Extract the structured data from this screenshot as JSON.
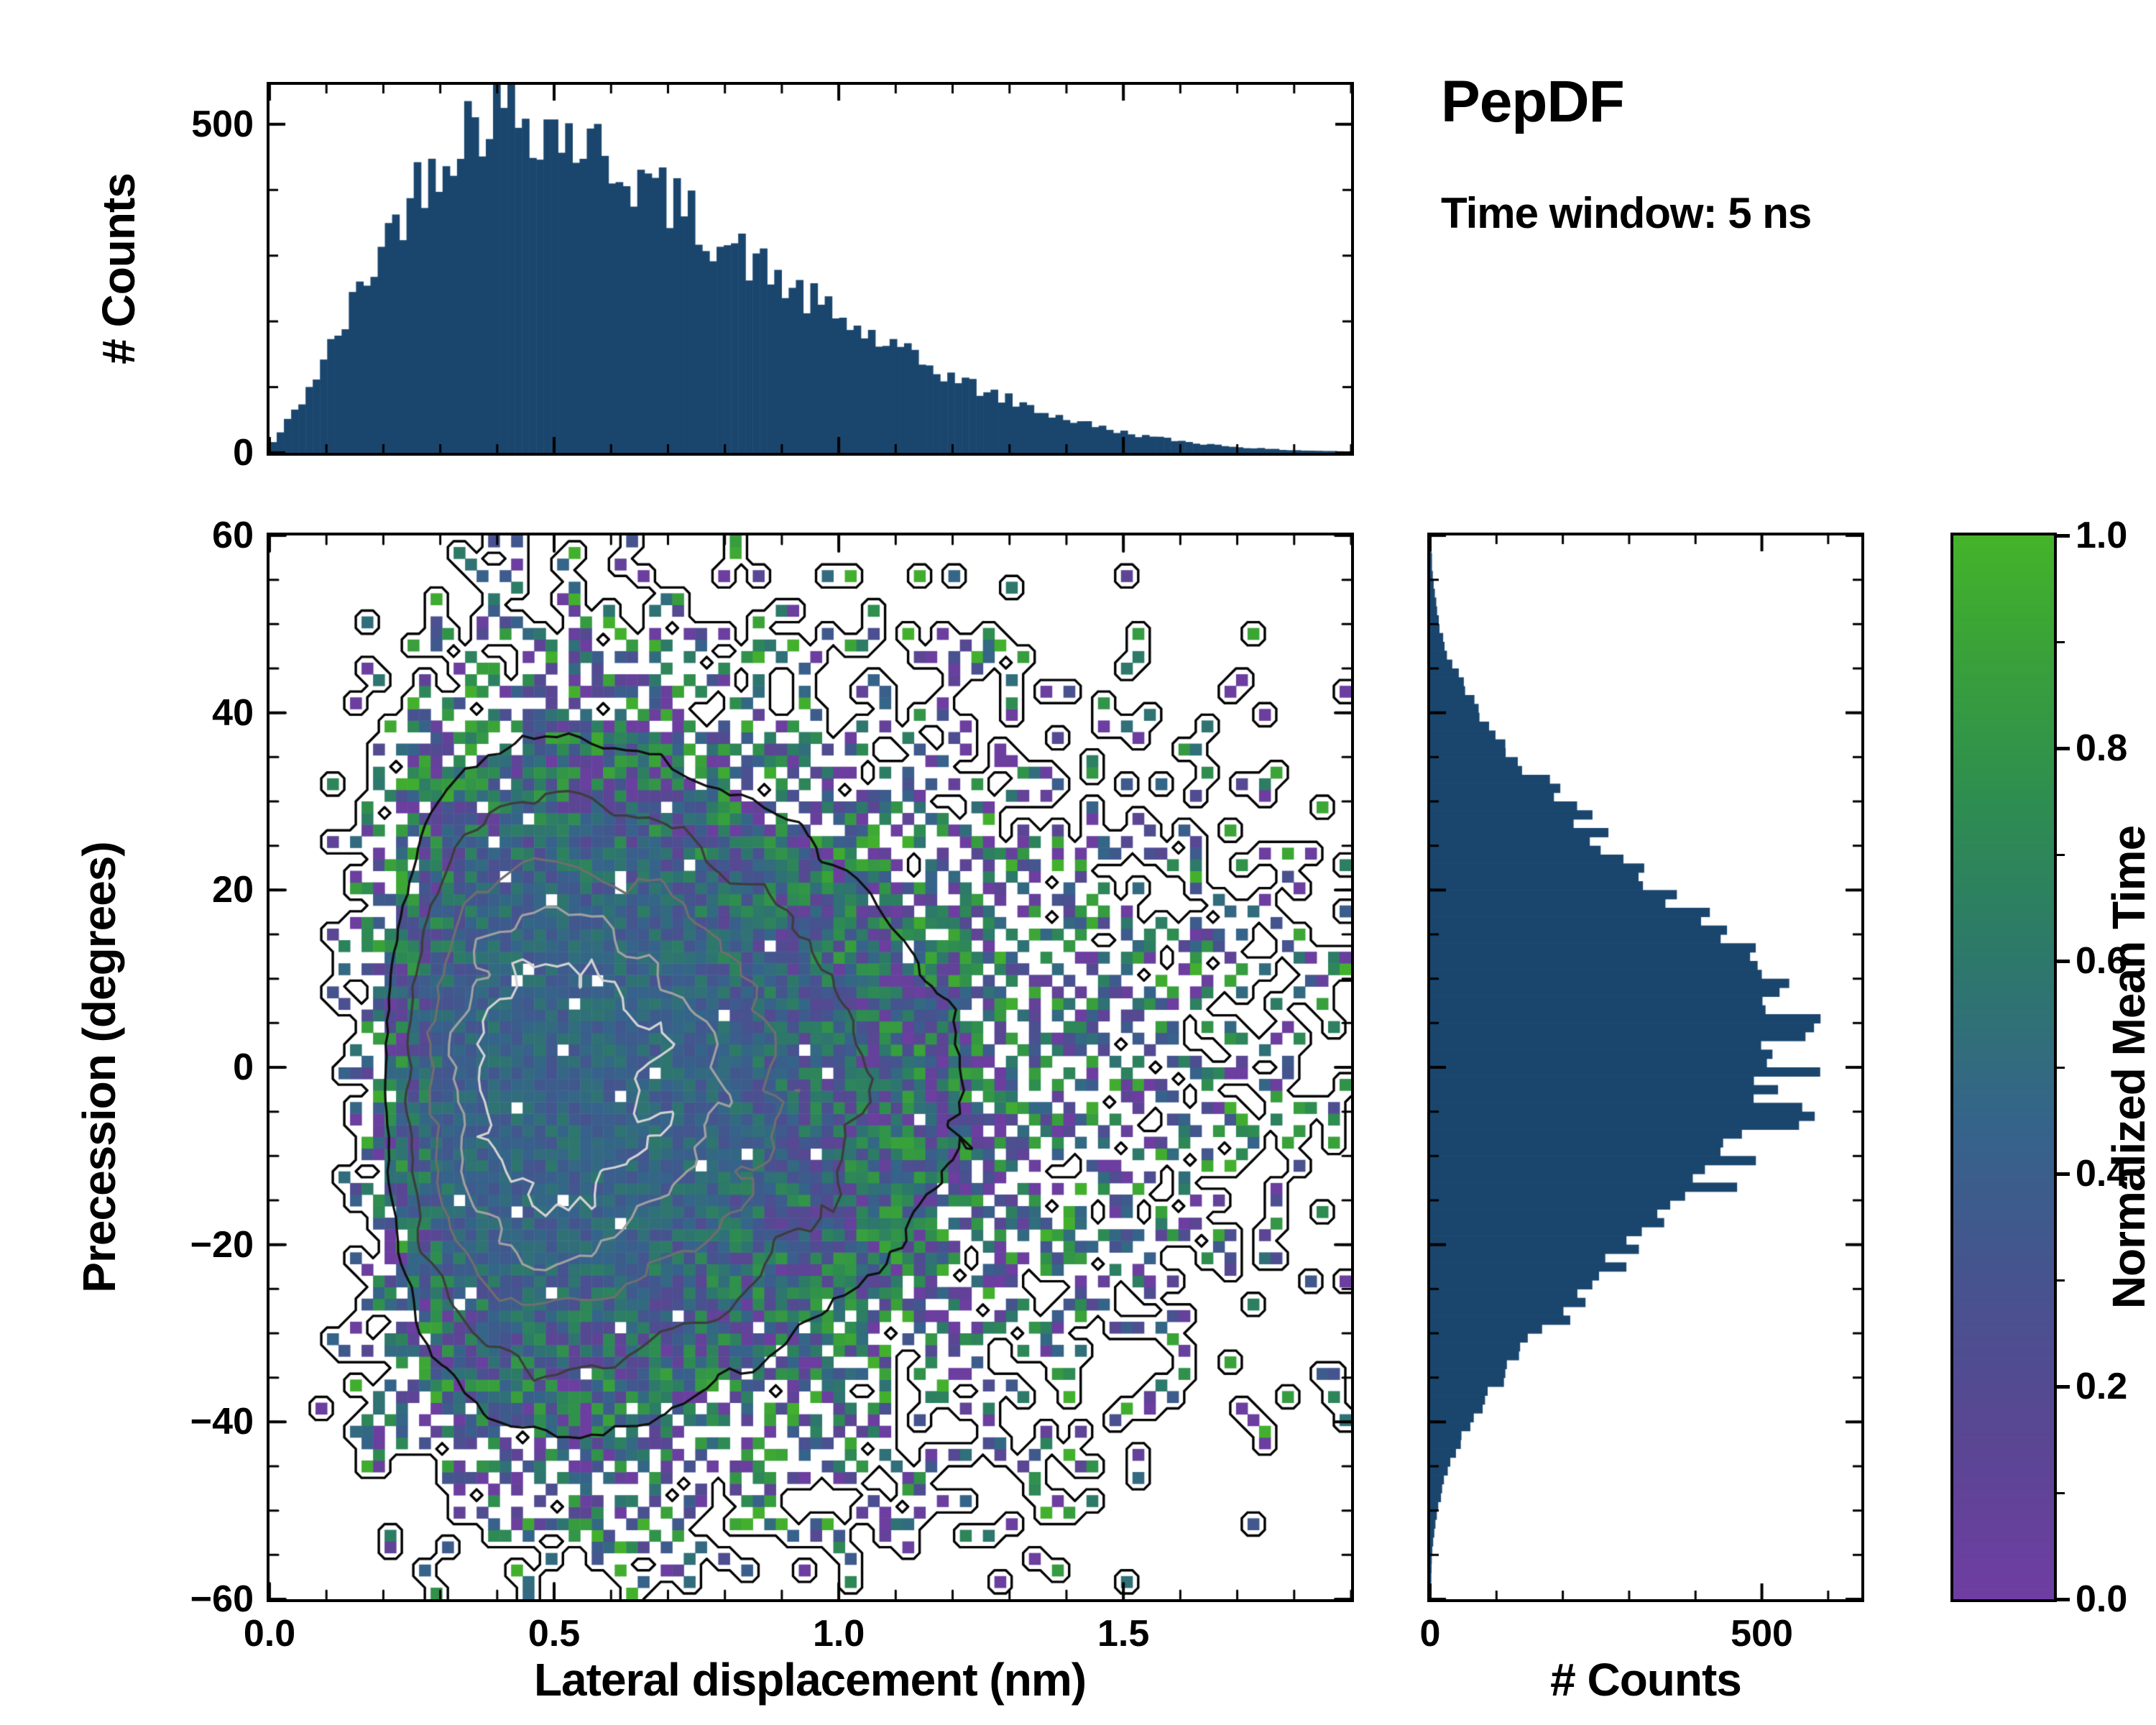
{
  "title": "PepDF",
  "subtitle": "Time window: 5 ns",
  "colors": {
    "bar": "#1a466e",
    "spine": "#000000",
    "background": "#ffffff",
    "outline": "#000000",
    "contour_shades": [
      "#101010",
      "#3d3d3d",
      "#6e6e6e",
      "#a0a0a0",
      "#d2d2d2"
    ]
  },
  "colorbar": {
    "label": "Normalized Mean Time",
    "ticks": [
      {
        "v": 0.0,
        "label": "0.0"
      },
      {
        "v": 0.2,
        "label": "0.2"
      },
      {
        "v": 0.4,
        "label": "0.4"
      },
      {
        "v": 0.6,
        "label": "0.6"
      },
      {
        "v": 0.8,
        "label": "0.8"
      },
      {
        "v": 1.0,
        "label": "1.0"
      }
    ],
    "stops": [
      [
        0.0,
        "#6f3da2"
      ],
      [
        0.15,
        "#5a4693"
      ],
      [
        0.3,
        "#46538f"
      ],
      [
        0.45,
        "#35648a"
      ],
      [
        0.6,
        "#2d786b"
      ],
      [
        0.75,
        "#2e8d50"
      ],
      [
        0.9,
        "#3aa338"
      ],
      [
        1.0,
        "#45b32a"
      ]
    ]
  },
  "chart_data": [
    {
      "type": "bar",
      "panel": "top",
      "name": "lateral-displacement-marginal-histogram",
      "xlabel": "",
      "ylabel": "# Counts",
      "x_range": [
        0,
        1.9
      ],
      "y_range": [
        0,
        560
      ],
      "bins": 150,
      "y_ticks": [
        {
          "v": 0,
          "label": "0"
        },
        {
          "v": 500,
          "label": "500"
        }
      ],
      "profile_x": [
        0,
        0.05,
        0.1,
        0.15,
        0.2,
        0.25,
        0.3,
        0.35,
        0.4,
        0.45,
        0.5,
        0.55,
        0.6,
        0.65,
        0.7,
        0.75,
        0.8,
        0.85,
        0.9,
        0.95,
        1,
        1.05,
        1.1,
        1.15,
        1.2,
        1.25,
        1.3,
        1.35,
        1.4,
        1.45,
        1.5,
        1.55,
        1.6,
        1.65,
        1.7,
        1.75,
        1.8,
        1.85,
        1.9
      ],
      "profile_counts": [
        8,
        70,
        145,
        230,
        320,
        395,
        455,
        500,
        530,
        515,
        495,
        472,
        445,
        415,
        385,
        352,
        320,
        290,
        260,
        232,
        205,
        180,
        157,
        135,
        115,
        96,
        80,
        65,
        52,
        41,
        31,
        24,
        18,
        13,
        9,
        6,
        4,
        3,
        2
      ],
      "noise": 0.1,
      "seed": 42
    },
    {
      "type": "heatmap",
      "panel": "main",
      "name": "joint-histogram",
      "xlabel": "Lateral displacement (nm)",
      "ylabel": "Precession (degrees)",
      "value_label": "Normalized Mean Time",
      "x_range": [
        0,
        1.9
      ],
      "y_range": [
        -60,
        60
      ],
      "x_ticks": [
        {
          "v": 0.0,
          "label": "0.0"
        },
        {
          "v": 0.5,
          "label": "0.5"
        },
        {
          "v": 1.0,
          "label": "1.0"
        },
        {
          "v": 1.5,
          "label": "1.5"
        }
      ],
      "y_ticks": [
        {
          "v": -60,
          "label": "−60"
        },
        {
          "v": -40,
          "label": "−40"
        },
        {
          "v": -20,
          "label": "−20"
        },
        {
          "v": 0,
          "label": "0"
        },
        {
          "v": 20,
          "label": "20"
        },
        {
          "v": 40,
          "label": "40"
        },
        {
          "v": 60,
          "label": "60"
        }
      ],
      "grid": {
        "nx": 94,
        "ny": 92
      },
      "density": {
        "x_mode": 0.5,
        "x_sigma": 0.48,
        "y_mean": -2,
        "y_sigma": 21
      },
      "mean_time_center": 0.45,
      "contour_levels": [
        0.18,
        0.32,
        0.5,
        0.68,
        0.84
      ],
      "seed": 7
    },
    {
      "type": "bar",
      "panel": "right",
      "orientation": "horizontal",
      "name": "precession-marginal-histogram",
      "xlabel": "# Counts",
      "ylabel": "",
      "x_range": [
        0,
        650
      ],
      "y_range": [
        -60,
        60
      ],
      "bins": 120,
      "x_ticks": [
        {
          "v": 0,
          "label": "0"
        },
        {
          "v": 500,
          "label": "500"
        }
      ],
      "profile_y": [
        -60,
        -55,
        -50,
        -45,
        -40,
        -35,
        -30,
        -25,
        -20,
        -15,
        -10,
        -5,
        0,
        5,
        10,
        15,
        20,
        25,
        30,
        35,
        40,
        45,
        50,
        55,
        60
      ],
      "profile_counts": [
        1,
        3,
        10,
        28,
        62,
        110,
        170,
        245,
        320,
        400,
        470,
        525,
        555,
        535,
        490,
        428,
        352,
        275,
        200,
        130,
        75,
        35,
        13,
        4,
        1
      ],
      "noise": 0.09,
      "seed": 13
    }
  ]
}
